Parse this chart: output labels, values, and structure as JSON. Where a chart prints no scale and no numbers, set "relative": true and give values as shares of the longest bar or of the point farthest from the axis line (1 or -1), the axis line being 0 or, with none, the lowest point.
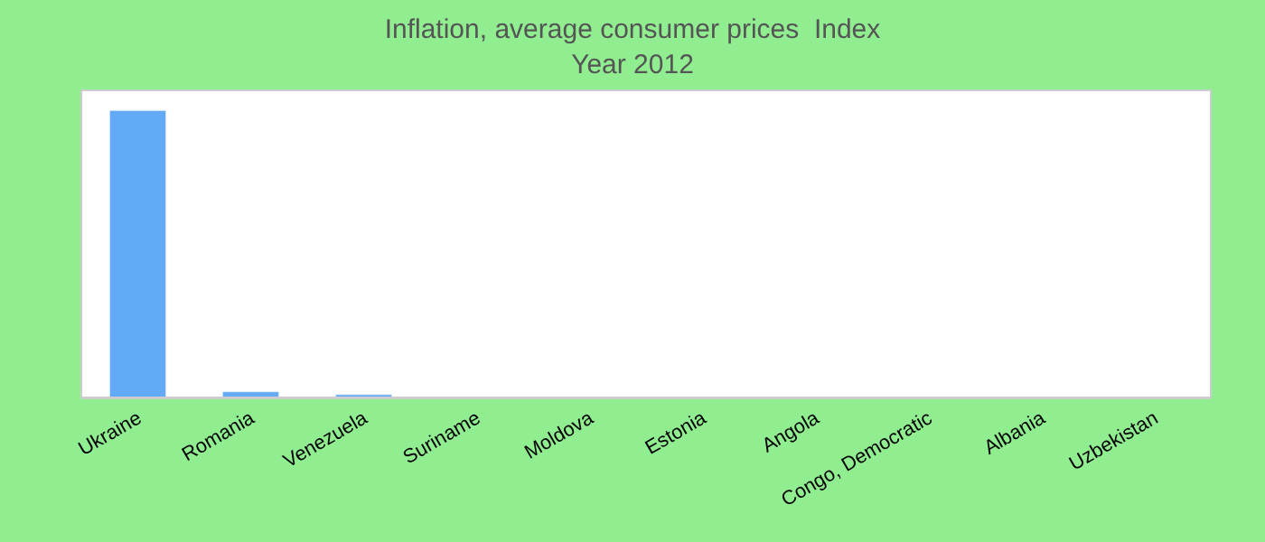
{
  "chart_data": {
    "type": "bar",
    "title": "Inflation, average consumer prices  Index",
    "subtitle": "Year 2012",
    "relative": true,
    "categories": [
      "Ukraine",
      "Romania",
      "Venezuela",
      "Suriname",
      "Moldova",
      "Estonia",
      "Angola",
      "Congo, Democratic",
      "Albania",
      "Uzbekistan"
    ],
    "values": [
      1,
      0.02,
      0.01,
      null,
      null,
      null,
      null,
      null,
      null,
      null
    ],
    "color": "#62aaf5"
  }
}
